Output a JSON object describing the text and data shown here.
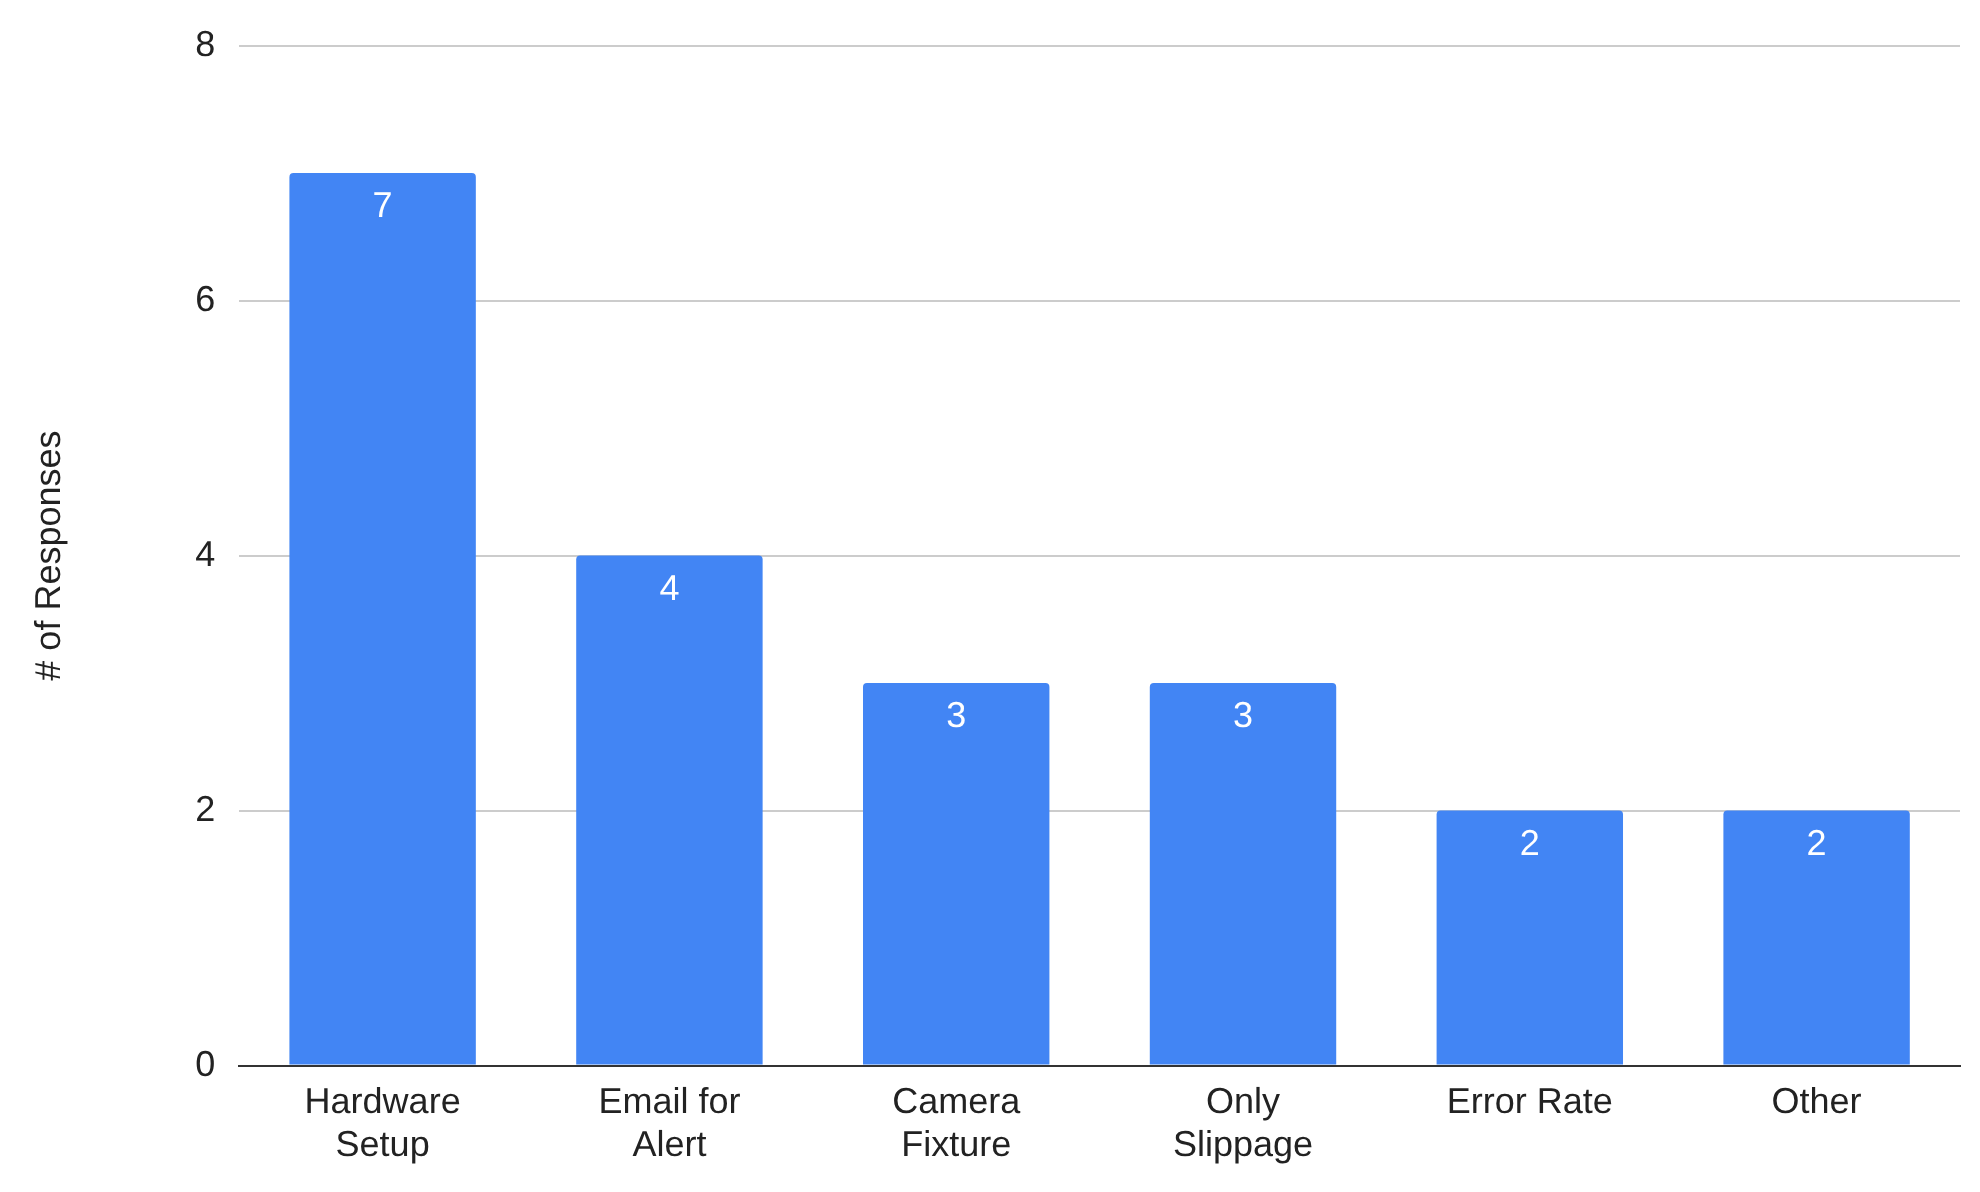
{
  "chart_data": {
    "type": "bar",
    "ylabel": "# of Responses",
    "categories": [
      "Hardware Setup",
      "Email for Alert",
      "Camera Fixture",
      "Only Slippage",
      "Error Rate",
      "Other"
    ],
    "values": [
      7,
      4,
      3,
      3,
      2,
      2
    ],
    "color": "#4285f4",
    "ylim": [
      0,
      8
    ],
    "yticks": [
      0,
      2,
      4,
      6,
      8
    ],
    "grid": "y",
    "data_labels": true
  }
}
